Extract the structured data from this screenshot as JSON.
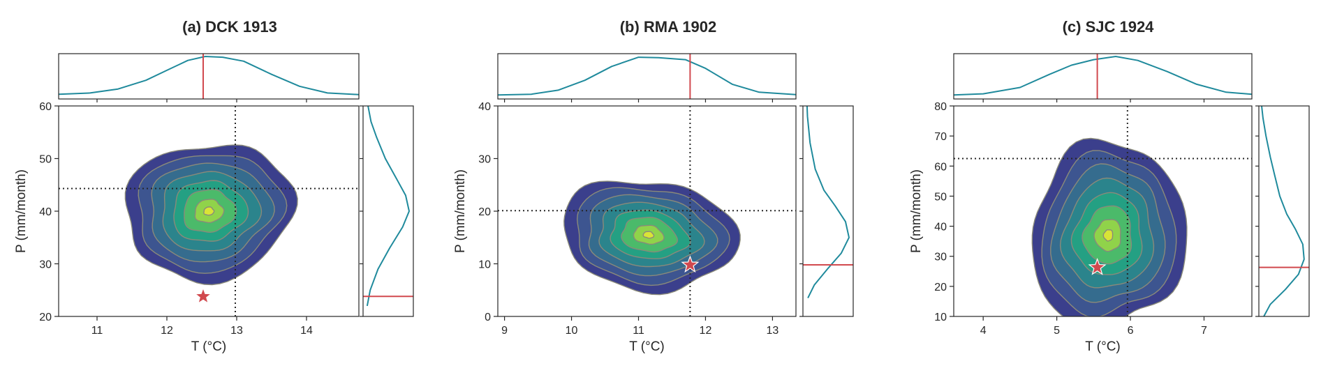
{
  "colors": {
    "levels": [
      "#3b3f8c",
      "#3d5590",
      "#356c8e",
      "#2b848c",
      "#24a083",
      "#4bba6a",
      "#90d34a",
      "#d9e436"
    ],
    "contour_line": "#8a8a7a",
    "marginal": "#1f8a9c",
    "observed": "#d1494e"
  },
  "chart_data": [
    {
      "type": "contour",
      "title": "(a) DCK 1913",
      "xlabel": "T (°C)",
      "ylabel": "P (mm/month)",
      "xlim": [
        10.45,
        14.75
      ],
      "ylim": [
        20,
        60
      ],
      "xticks": [
        11,
        12,
        13,
        14
      ],
      "yticks": [
        20,
        30,
        40,
        50,
        60
      ],
      "center": [
        12.6,
        40
      ],
      "spread": [
        1.2,
        13
      ],
      "ref_x": 12.98,
      "ref_y": 44.3,
      "observed": [
        12.52,
        23.8
      ],
      "marg_x": [
        [
          10.45,
          0.05
        ],
        [
          10.9,
          0.08
        ],
        [
          11.3,
          0.18
        ],
        [
          11.7,
          0.4
        ],
        [
          12.0,
          0.65
        ],
        [
          12.3,
          0.9
        ],
        [
          12.55,
          1.0
        ],
        [
          12.8,
          0.98
        ],
        [
          13.1,
          0.88
        ],
        [
          13.5,
          0.55
        ],
        [
          13.9,
          0.25
        ],
        [
          14.3,
          0.08
        ],
        [
          14.75,
          0.04
        ]
      ],
      "marg_y": [
        [
          22,
          0.03
        ],
        [
          25,
          0.1
        ],
        [
          29,
          0.28
        ],
        [
          33,
          0.55
        ],
        [
          37,
          0.85
        ],
        [
          40,
          1.0
        ],
        [
          43,
          0.92
        ],
        [
          46,
          0.72
        ],
        [
          50,
          0.45
        ],
        [
          54,
          0.25
        ],
        [
          57,
          0.12
        ],
        [
          60,
          0.05
        ]
      ]
    },
    {
      "type": "contour",
      "title": "(b) RMA 1902",
      "xlabel": "T (°C)",
      "ylabel": "P (mm/month)",
      "xlim": [
        8.9,
        13.35
      ],
      "ylim": [
        0,
        40
      ],
      "xticks": [
        9,
        10,
        11,
        12,
        13
      ],
      "yticks": [
        0,
        10,
        20,
        30,
        40
      ],
      "center": [
        11.15,
        15.5
      ],
      "spread": [
        1.3,
        10.5
      ],
      "ref_x": 11.77,
      "ref_y": 20.1,
      "observed": [
        11.77,
        9.8
      ],
      "marg_x": [
        [
          8.9,
          0.03
        ],
        [
          9.4,
          0.05
        ],
        [
          9.8,
          0.15
        ],
        [
          10.2,
          0.4
        ],
        [
          10.6,
          0.75
        ],
        [
          11.0,
          0.98
        ],
        [
          11.3,
          0.97
        ],
        [
          11.7,
          0.92
        ],
        [
          12.0,
          0.7
        ],
        [
          12.4,
          0.3
        ],
        [
          12.8,
          0.1
        ],
        [
          13.35,
          0.04
        ]
      ],
      "marg_y": [
        [
          3.5,
          0.05
        ],
        [
          6,
          0.2
        ],
        [
          9,
          0.5
        ],
        [
          12,
          0.82
        ],
        [
          15,
          1.0
        ],
        [
          18,
          0.92
        ],
        [
          21,
          0.68
        ],
        [
          24,
          0.42
        ],
        [
          28,
          0.22
        ],
        [
          33,
          0.1
        ],
        [
          38,
          0.04
        ],
        [
          40,
          0.03
        ]
      ]
    },
    {
      "type": "contour",
      "title": "(c) SJC 1924",
      "xlabel": "T (°C)",
      "ylabel": "P (mm/month)",
      "xlim": [
        3.6,
        7.65
      ],
      "ylim": [
        10,
        80
      ],
      "xticks": [
        4,
        5,
        6,
        7
      ],
      "yticks": [
        10,
        20,
        30,
        40,
        50,
        60,
        70,
        80
      ],
      "center": [
        5.7,
        37
      ],
      "spread": [
        1.05,
        31
      ],
      "ref_x": 5.96,
      "ref_y": 62.5,
      "observed": [
        5.55,
        26.3
      ],
      "marg_x": [
        [
          3.6,
          0.03
        ],
        [
          4.0,
          0.06
        ],
        [
          4.5,
          0.22
        ],
        [
          4.9,
          0.55
        ],
        [
          5.2,
          0.78
        ],
        [
          5.5,
          0.92
        ],
        [
          5.8,
          1.0
        ],
        [
          6.1,
          0.9
        ],
        [
          6.5,
          0.62
        ],
        [
          6.9,
          0.3
        ],
        [
          7.3,
          0.1
        ],
        [
          7.65,
          0.05
        ]
      ],
      "marg_y": [
        [
          10,
          0.05
        ],
        [
          14,
          0.2
        ],
        [
          19,
          0.55
        ],
        [
          24,
          0.85
        ],
        [
          29,
          0.98
        ],
        [
          34,
          0.95
        ],
        [
          39,
          0.78
        ],
        [
          44,
          0.58
        ],
        [
          50,
          0.42
        ],
        [
          57,
          0.3
        ],
        [
          63,
          0.2
        ],
        [
          70,
          0.1
        ],
        [
          76,
          0.03
        ],
        [
          80,
          0.0
        ]
      ]
    }
  ]
}
